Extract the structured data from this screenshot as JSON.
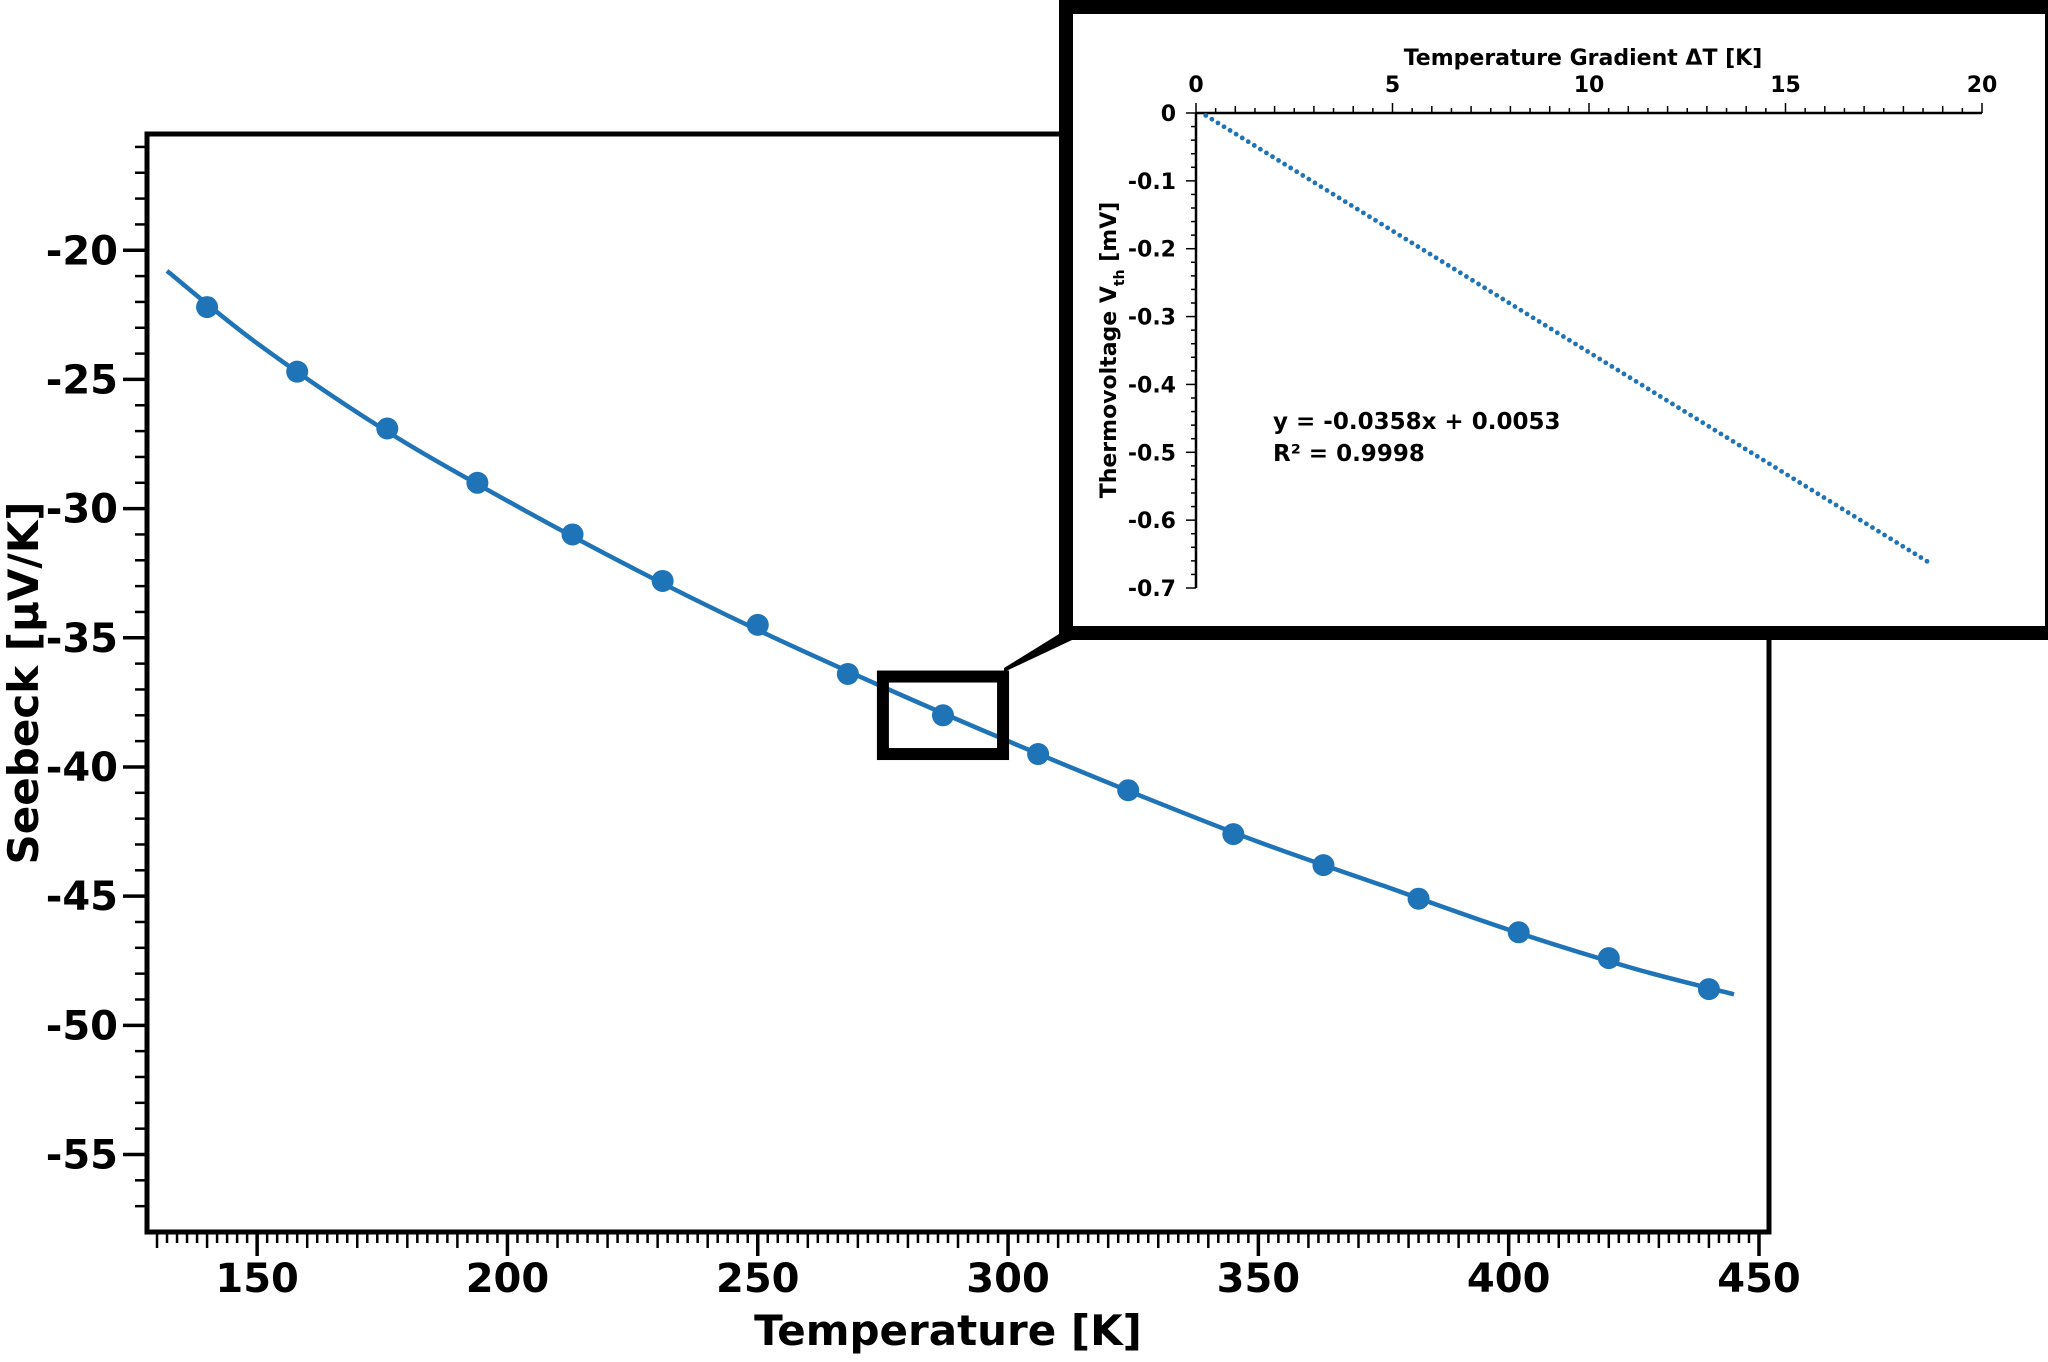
{
  "colors": {
    "series": "#1f73b7",
    "axes": "#000000"
  },
  "chart_data": [
    {
      "id": "main",
      "type": "scatter",
      "xlabel": "Temperature [K]",
      "ylabel": "Seebeck [μV/K]",
      "xlim": [
        128,
        452
      ],
      "ylim": [
        -58,
        -15.5
      ],
      "x_ticks": [
        150,
        200,
        250,
        300,
        350,
        400,
        450
      ],
      "x_tick_labels": [
        "150",
        "200",
        "250",
        "300",
        "350",
        "400",
        "450"
      ],
      "y_ticks": [
        -20,
        -25,
        -30,
        -35,
        -40,
        -45,
        -50,
        -55
      ],
      "y_tick_labels": [
        "-20",
        "-25",
        "-30",
        "-35",
        "-40",
        "-45",
        "-50",
        "-55"
      ],
      "series": [
        {
          "kind": "points",
          "x": [
            140,
            158,
            176,
            194,
            213,
            231,
            250,
            268,
            287,
            306,
            324,
            345,
            363,
            382,
            402,
            420,
            440
          ],
          "y": [
            -22.2,
            -24.7,
            -26.9,
            -29.0,
            -31.0,
            -32.8,
            -34.5,
            -36.4,
            -38.0,
            -39.5,
            -40.9,
            -42.6,
            -43.8,
            -45.1,
            -46.4,
            -47.4,
            -48.6
          ]
        },
        {
          "kind": "fit-curve",
          "x": [
            132,
            150,
            175,
            200,
            225,
            250,
            275,
            300,
            325,
            350,
            375,
            400,
            425,
            445
          ],
          "y": [
            -20.8,
            -23.6,
            -26.9,
            -29.7,
            -32.3,
            -34.7,
            -36.9,
            -39.0,
            -41.0,
            -42.9,
            -44.6,
            -46.3,
            -47.8,
            -48.8
          ]
        }
      ],
      "zoom_box": {
        "x": [
          275,
          299
        ],
        "y": [
          -36.5,
          -39.5
        ]
      }
    },
    {
      "id": "inset",
      "type": "scatter",
      "xlabel": "Temperature Gradient ΔT [K]",
      "ylabel_main": "Thermovoltage V",
      "ylabel_sub": "th",
      "ylabel_unit": " [mV]",
      "xlim": [
        0,
        20
      ],
      "ylim": [
        -0.7,
        0
      ],
      "x_ticks": [
        0,
        5,
        10,
        15,
        20
      ],
      "x_tick_labels": [
        "0",
        "5",
        "10",
        "15",
        "20"
      ],
      "y_ticks": [
        0,
        -0.1,
        -0.2,
        -0.3,
        -0.4,
        -0.5,
        -0.6,
        -0.7
      ],
      "y_tick_labels": [
        "0",
        "-0.1",
        "-0.2",
        "-0.3",
        "-0.4",
        "-0.5",
        "-0.6",
        "-0.7"
      ],
      "fit": {
        "slope": -0.0358,
        "intercept": 0.0053
      },
      "x_range": [
        0.25,
        18.6
      ],
      "point_count": 120,
      "equation": "y = -0.0358x + 0.0053",
      "r2_label": "R² = 0.9998"
    }
  ]
}
